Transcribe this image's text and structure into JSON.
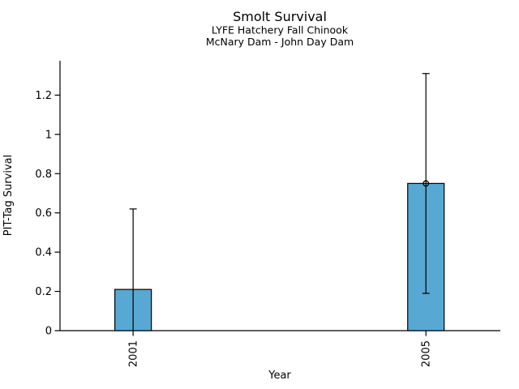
{
  "chart_data": {
    "type": "bar",
    "title": "Smolt Survival",
    "subtitle1": "LYFE Hatchery Fall Chinook",
    "subtitle2": "McNary Dam - John Day Dam",
    "xlabel": "Year",
    "ylabel": "PIT-Tag Survival",
    "categories": [
      "2001",
      "2005"
    ],
    "values": [
      0.21,
      0.75
    ],
    "error_bars": [
      {
        "low": 0.0,
        "high": 0.62,
        "low_cap": false,
        "high_cap": true
      },
      {
        "low": 0.19,
        "high": 1.31,
        "low_cap": true,
        "high_cap": true
      }
    ],
    "point_markers": [
      null,
      0.75
    ],
    "ytick_values": [
      0,
      0.2,
      0.4,
      0.6,
      0.8,
      1,
      1.2
    ],
    "ytick_labels": [
      "0",
      "0.2",
      "0.4",
      "0.6",
      "0.8",
      "1",
      "1.2"
    ],
    "ylim": [
      0,
      1.375
    ],
    "grid": false,
    "legend": "none",
    "bar_color": "#58a8d4",
    "bar_edge_color": "#000000",
    "whisker_color": "#000000",
    "axis_color": "#000000",
    "text_color": "#000000",
    "background_color": "#ffffff"
  }
}
